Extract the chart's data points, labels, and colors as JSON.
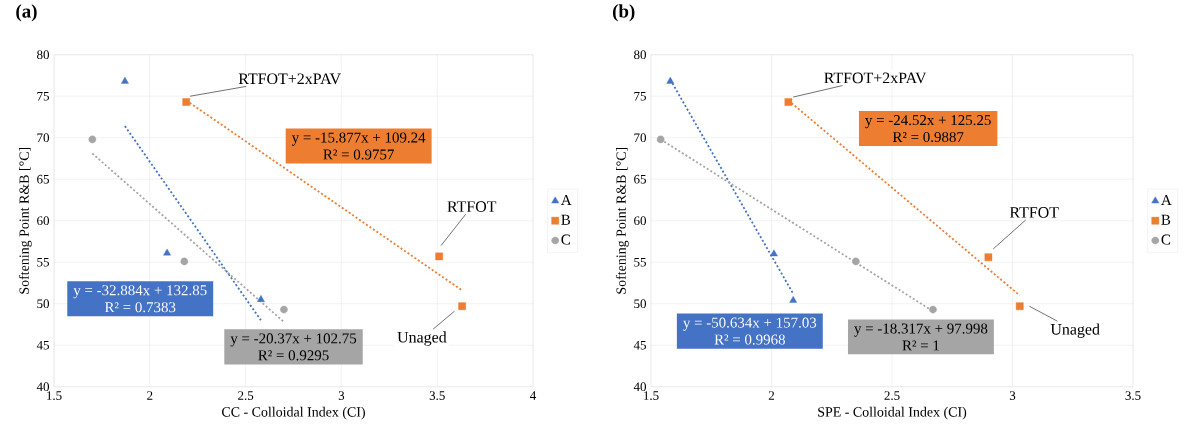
{
  "chart_data": [
    {
      "type": "scatter",
      "title": "(a)",
      "xlabel": "CC - Colloidal Index (CI)",
      "ylabel": "Softening Point R&B [°C]",
      "xlim": [
        1.5,
        4
      ],
      "ylim": [
        40,
        80
      ],
      "xticks": [
        1.5,
        2,
        2.5,
        3,
        3.5,
        4
      ],
      "yticks": [
        40,
        45,
        50,
        55,
        60,
        65,
        70,
        75,
        80
      ],
      "grid": true,
      "legend": "right",
      "series": [
        {
          "name": "A",
          "marker": "triangle",
          "color": "#4472c4",
          "x": [
            1.87,
            2.09,
            2.58
          ],
          "values": [
            76.8,
            56.1,
            50.5
          ]
        },
        {
          "name": "B",
          "marker": "square",
          "color": "#ed7d31",
          "x": [
            2.19,
            3.51,
            3.63
          ],
          "values": [
            74.3,
            55.7,
            49.7
          ]
        },
        {
          "name": "C",
          "marker": "circle",
          "color": "#a5a5a5",
          "x": [
            1.7,
            2.18,
            2.7
          ],
          "values": [
            69.8,
            55.1,
            49.3
          ]
        },
        {
          "type": "line",
          "line_style": "dotted",
          "color": "#4472c4",
          "x": [
            1.87,
            2.58
          ],
          "values": [
            71.4,
            48.0
          ]
        },
        {
          "type": "line",
          "line_style": "dotted",
          "color": "#ed7d31",
          "x": [
            2.19,
            3.63
          ],
          "values": [
            74.5,
            51.6
          ]
        },
        {
          "type": "line",
          "line_style": "dotted",
          "color": "#a5a5a5",
          "x": [
            1.7,
            2.7
          ],
          "values": [
            68.1,
            47.8
          ]
        }
      ],
      "annotations": [
        {
          "text": "RTFOT+2xPAV",
          "x": 2.19,
          "y": 74.3
        },
        {
          "text": "RTFOT",
          "x": 3.51,
          "y": 55.7
        },
        {
          "text": "Unaged",
          "x": 3.63,
          "y": 49.7
        },
        "y = -32.884x + 132.85",
        "R² = 0.7383",
        "y = -15.877x + 109.24",
        "R² = 0.9757",
        "y = -20.37x + 102.75",
        "R² = 0.9295"
      ]
    },
    {
      "type": "scatter",
      "title": "(b)",
      "xlabel": "SPE - Colloidal Index (CI)",
      "ylabel": "Softening Point R&B [°C]",
      "xlim": [
        1.5,
        3.5
      ],
      "ylim": [
        40,
        80
      ],
      "xticks": [
        1.5,
        2,
        2.5,
        3,
        3.5
      ],
      "yticks": [
        40,
        45,
        50,
        55,
        60,
        65,
        70,
        75,
        80
      ],
      "grid": true,
      "legend": "right",
      "series": [
        {
          "name": "A",
          "marker": "triangle",
          "color": "#4472c4",
          "x": [
            1.58,
            2.01,
            2.09
          ],
          "values": [
            76.8,
            56.0,
            50.4
          ]
        },
        {
          "name": "B",
          "marker": "square",
          "color": "#ed7d31",
          "x": [
            2.07,
            2.9,
            3.03
          ],
          "values": [
            74.3,
            55.6,
            49.7
          ]
        },
        {
          "name": "C",
          "marker": "circle",
          "color": "#a5a5a5",
          "x": [
            1.54,
            2.35,
            2.67
          ],
          "values": [
            69.8,
            55.1,
            49.3
          ]
        },
        {
          "type": "line",
          "line_style": "dotted",
          "color": "#4472c4",
          "x": [
            1.58,
            2.09
          ],
          "values": [
            77.0,
            51.2
          ]
        },
        {
          "type": "line",
          "line_style": "dotted",
          "color": "#ed7d31",
          "x": [
            2.07,
            3.03
          ],
          "values": [
            74.5,
            51.0
          ]
        },
        {
          "type": "line",
          "line_style": "dotted",
          "color": "#a5a5a5",
          "x": [
            1.54,
            2.67
          ],
          "values": [
            69.8,
            49.1
          ]
        }
      ],
      "annotations": [
        {
          "text": "RTFOT+2xPAV",
          "x": 2.07,
          "y": 74.3
        },
        {
          "text": "RTFOT",
          "x": 2.9,
          "y": 55.6
        },
        {
          "text": "Unaged",
          "x": 3.03,
          "y": 49.7
        },
        "y = -50.634x + 157.03",
        "R² = 0.9968",
        "y = -24.52x + 125.25",
        "R² = 0.9887",
        "y = -18.317x + 97.998",
        "R² = 1"
      ]
    }
  ]
}
